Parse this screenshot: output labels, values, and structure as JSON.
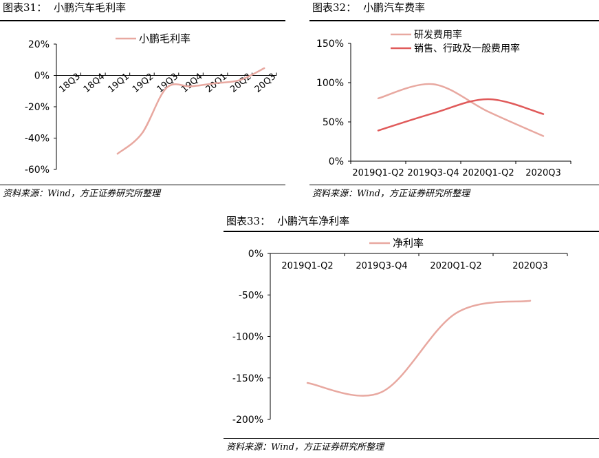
{
  "charts": [
    {
      "figure_no": "图表31：",
      "figure_title": "小鹏汽车毛利率",
      "source": "资料来源：Wind，方正证券研究所整理"
    },
    {
      "figure_no": "图表32：",
      "figure_title": "小鹏汽车费率",
      "source": "资料来源：Wind，方正证券研究所整理"
    },
    {
      "figure_no": "图表33：",
      "figure_title": "小鹏汽车净利率",
      "source": "资料来源：Wind，方正证券研究所整理"
    }
  ],
  "chart_data": [
    {
      "type": "line",
      "title": "小鹏汽车毛利率",
      "categories": [
        "18Q3",
        "18Q4",
        "19Q1",
        "19Q2",
        "19Q3",
        "19Q4",
        "20Q1",
        "20Q2",
        "20Q3"
      ],
      "series": [
        {
          "name": "小鹏毛利率",
          "values": [
            null,
            null,
            -50,
            -37,
            -8,
            -7,
            -5,
            -3,
            4.6
          ],
          "color": "#e8a8a0"
        }
      ],
      "ylim": [
        -60,
        20
      ],
      "yticks": [
        20,
        0,
        -20,
        -40,
        -60
      ],
      "ytick_labels": [
        "20%",
        "0%",
        "-20%",
        "-40%",
        "-60%"
      ],
      "legend": "top"
    },
    {
      "type": "line",
      "title": "小鹏汽车费率",
      "categories": [
        "2019Q1-Q2",
        "2019Q3-Q4",
        "2020Q1-Q2",
        "2020Q3"
      ],
      "series": [
        {
          "name": "研发费用率",
          "values": [
            80,
            98,
            63,
            32
          ],
          "color": "#e8a8a0"
        },
        {
          "name": "销售、行政及一般费用率",
          "values": [
            39,
            61,
            79,
            60
          ],
          "color": "#e05a5a"
        }
      ],
      "ylim": [
        0,
        150
      ],
      "yticks": [
        150,
        100,
        50,
        0
      ],
      "ytick_labels": [
        "150%",
        "100%",
        "50%",
        "0%"
      ],
      "legend": "top-left"
    },
    {
      "type": "line",
      "title": "小鹏汽车净利率",
      "categories": [
        "2019Q1-Q2",
        "2019Q3-Q4",
        "2020Q1-Q2",
        "2020Q3"
      ],
      "series": [
        {
          "name": "净利率",
          "values": [
            -156,
            -167,
            -72,
            -57
          ],
          "color": "#e8a8a0"
        }
      ],
      "ylim": [
        -200,
        0
      ],
      "yticks": [
        0,
        -50,
        -100,
        -150,
        -200
      ],
      "ytick_labels": [
        "0%",
        "-50%",
        "-100%",
        "-150%",
        "-200%"
      ],
      "legend": "top"
    }
  ]
}
